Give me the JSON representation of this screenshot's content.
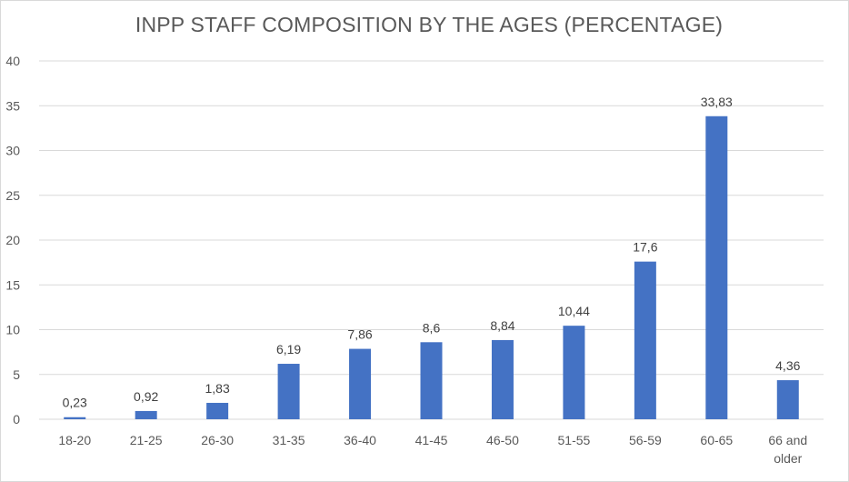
{
  "chart_data": {
    "type": "bar",
    "title": "INPP STAFF COMPOSITION BY THE AGES (PERCENTAGE)",
    "xlabel": "",
    "ylabel": "",
    "categories": [
      "18-20",
      "21-25",
      "26-30",
      "31-35",
      "36-40",
      "41-45",
      "46-50",
      "51-55",
      "56-59",
      "60-65",
      "66 and older"
    ],
    "values": [
      0.23,
      0.92,
      1.83,
      6.19,
      7.86,
      8.6,
      8.84,
      10.44,
      17.6,
      33.83,
      4.36
    ],
    "data_labels": [
      "0,23",
      "0,92",
      "1,83",
      "6,19",
      "7,86",
      "8,6",
      "8,84",
      "10,44",
      "17,6",
      "33,83",
      "4,36"
    ],
    "ylim": [
      0,
      40
    ],
    "yticks": [
      0,
      5,
      10,
      15,
      20,
      25,
      30,
      35,
      40
    ],
    "grid": true,
    "legend": "none",
    "colors": {
      "bar": "#4472c4",
      "grid": "#d9d9d9",
      "text": "#595959"
    }
  }
}
